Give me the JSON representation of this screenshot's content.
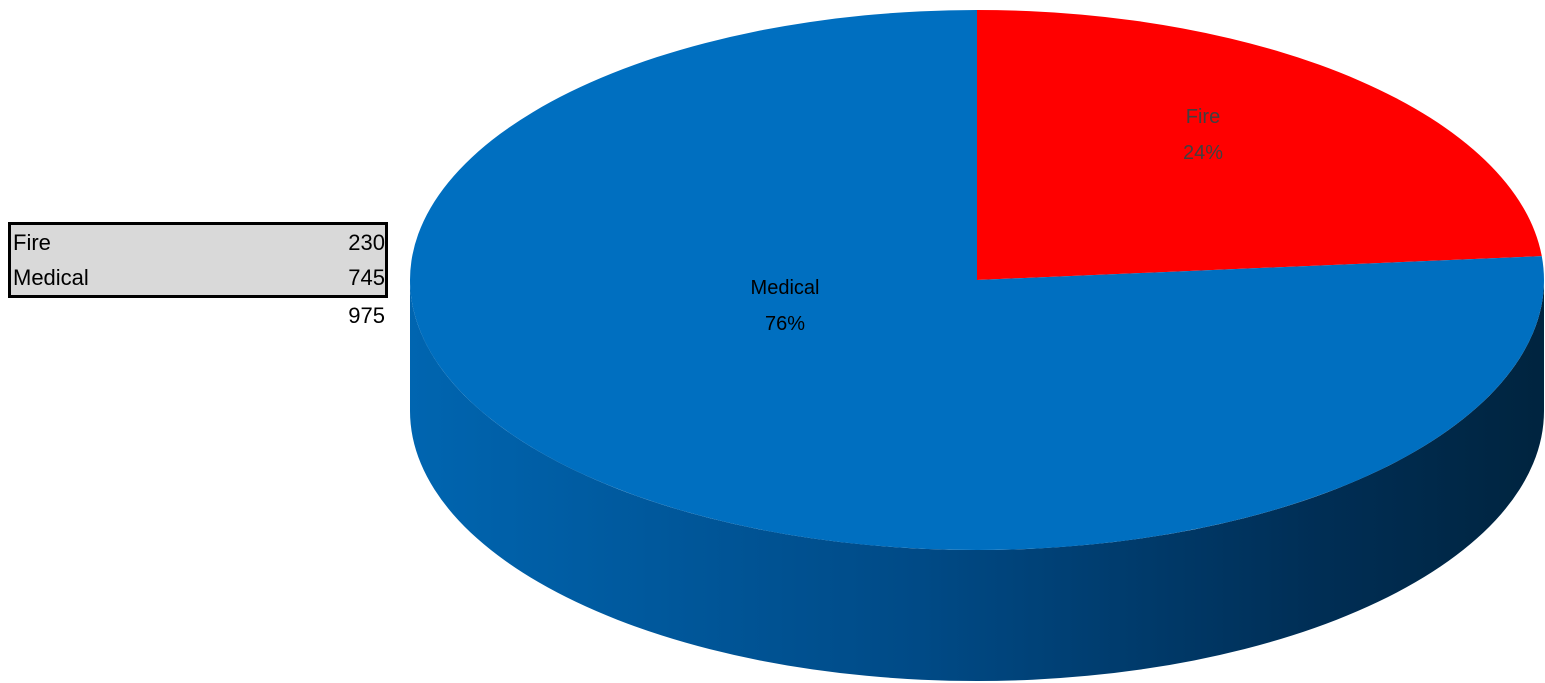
{
  "table": {
    "rows": [
      {
        "label": "Fire",
        "value": "230"
      },
      {
        "label": "Medical",
        "value": "745"
      }
    ],
    "total": "975"
  },
  "colors": {
    "fire": "#ff0000",
    "medical": "#006fc0",
    "table_fill": "#d9d9d9"
  },
  "chart_data": {
    "type": "pie",
    "style": "3d",
    "labels": [
      "Fire",
      "Medical"
    ],
    "values": [
      230,
      745
    ],
    "percent_labels": [
      "24%",
      "76%"
    ],
    "colors": [
      "#ff0000",
      "#006fc0"
    ]
  }
}
